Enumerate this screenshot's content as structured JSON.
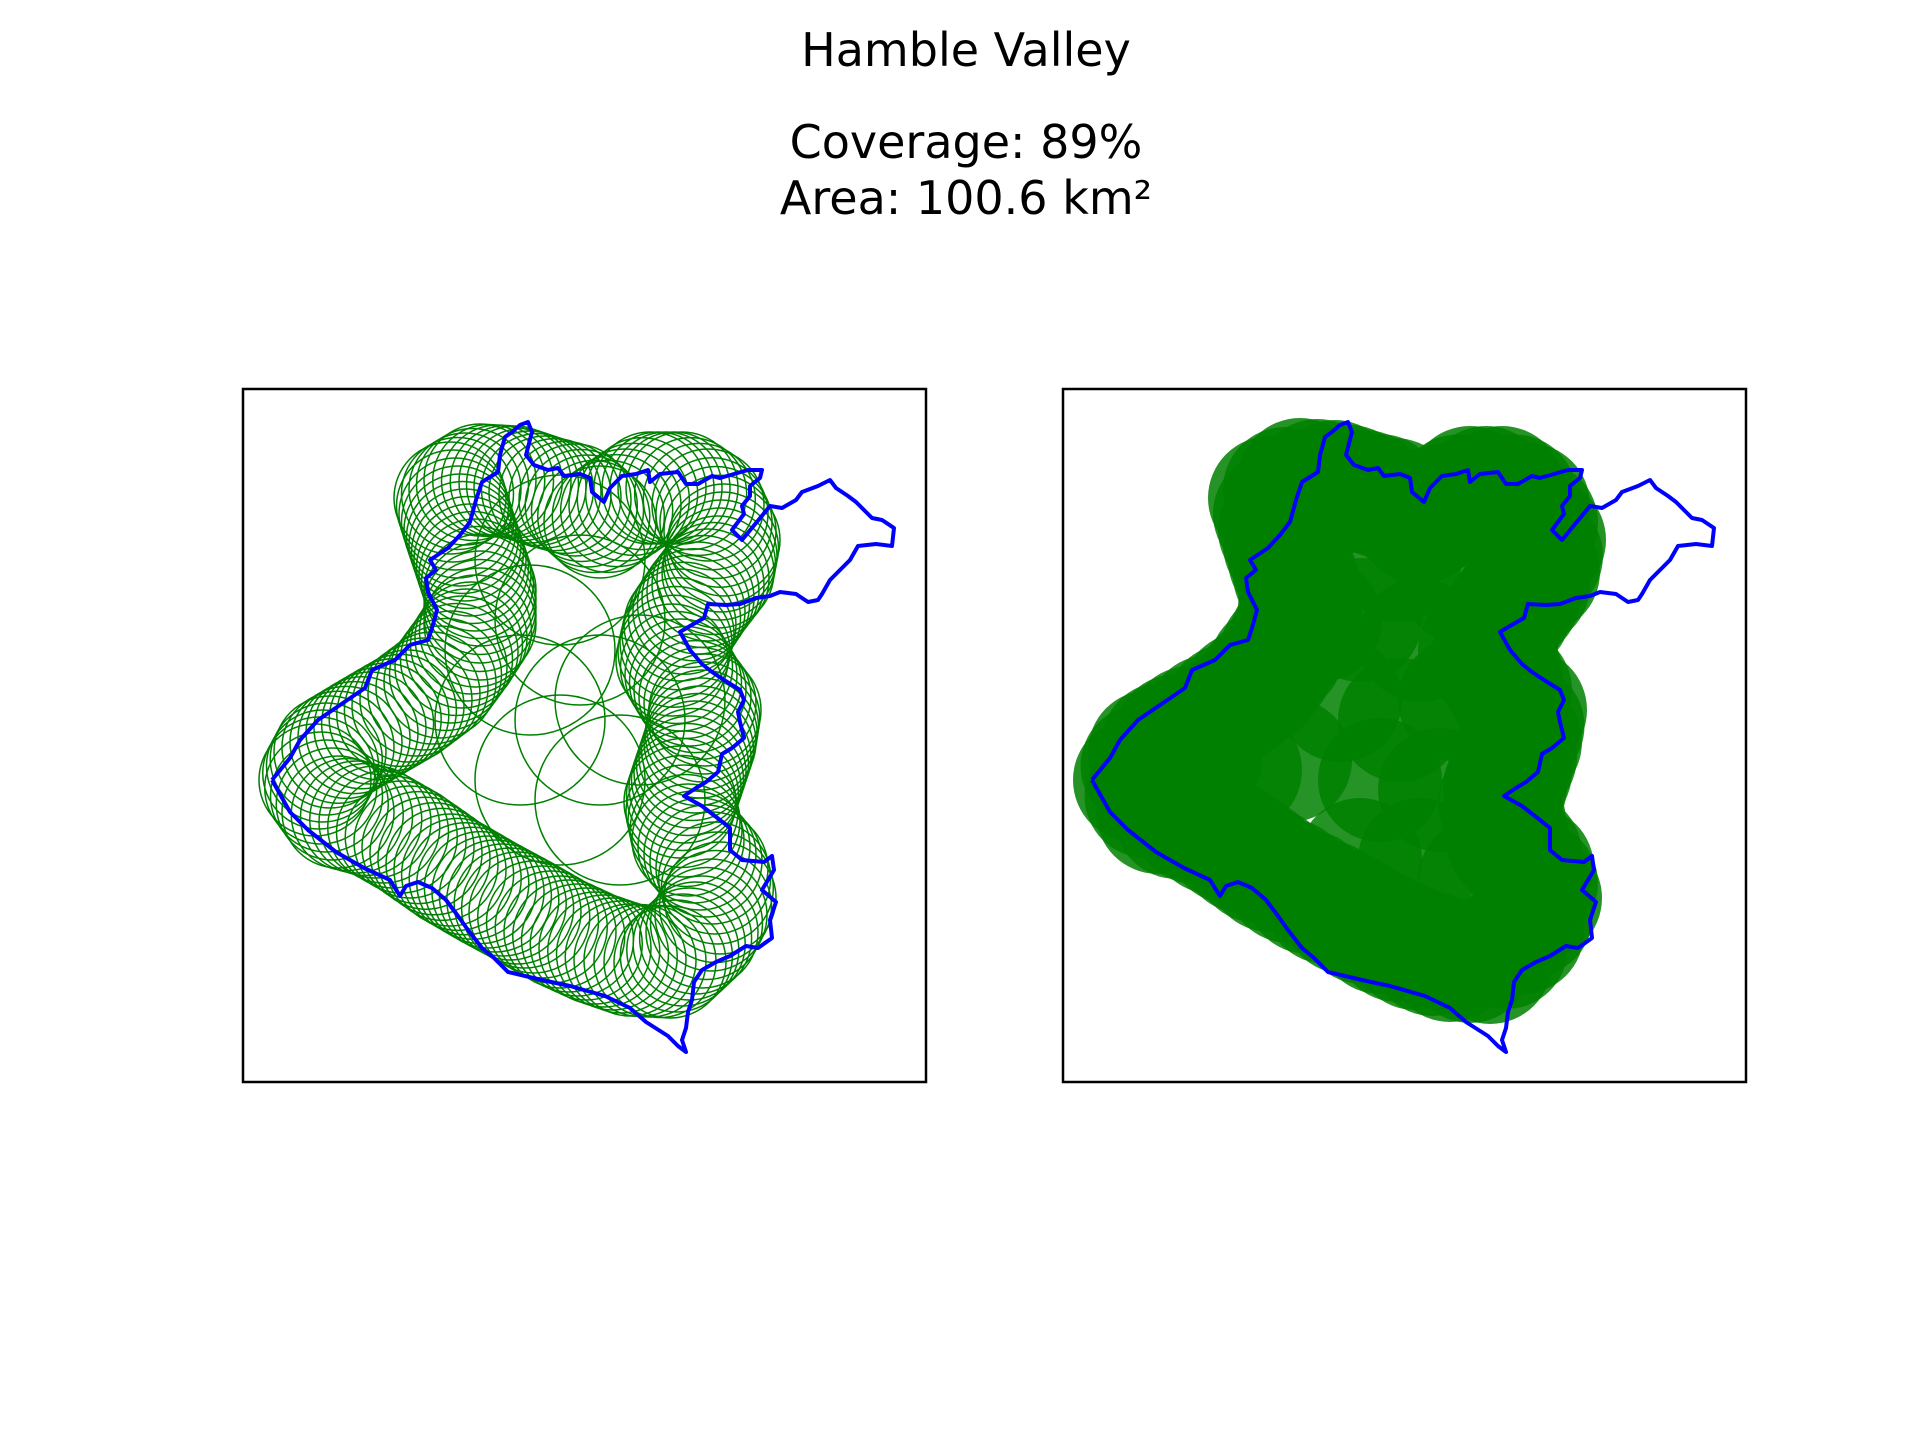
{
  "title": "Hamble Valley",
  "coverage_text": "Coverage: 89%",
  "area_text": "Area: 100.6 km²",
  "coverage_percent": 89,
  "area_km2": 100.6,
  "colors": {
    "boundary": "#0000ff",
    "coverage": "#008000",
    "frame": "#000000",
    "background": "#ffffff"
  },
  "panels": [
    {
      "id": "left",
      "style": "outline",
      "description_icon": "coverage-rings"
    },
    {
      "id": "right",
      "style": "filled",
      "description_icon": "coverage-fill"
    }
  ]
}
